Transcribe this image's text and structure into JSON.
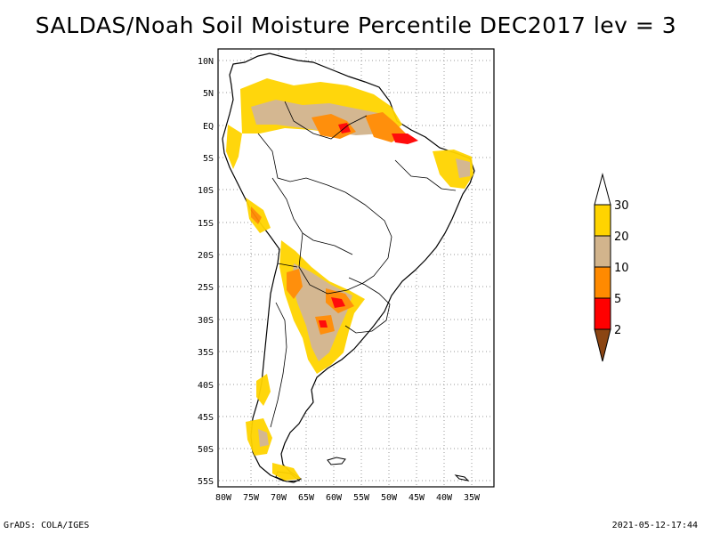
{
  "title": "SALDAS/Noah Soil Moisture Percentile DEC2017 lev = 3",
  "footer": {
    "left": "GrADS: COLA/IGES",
    "right": "2021-05-12-17:44"
  },
  "map": {
    "lon_range": [
      -80,
      -30
    ],
    "lat_range": [
      -56,
      11
    ],
    "x_ticks": [
      "80W",
      "75W",
      "70W",
      "65W",
      "60W",
      "55W",
      "50W",
      "45W",
      "40W",
      "35W"
    ],
    "y_ticks": [
      "10N",
      "5N",
      "EQ",
      "5S",
      "10S",
      "15S",
      "20S",
      "25S",
      "30S",
      "35S",
      "40S",
      "45S",
      "50S",
      "55S"
    ],
    "grid": "dotted"
  },
  "legend": {
    "labels": [
      "30",
      "20",
      "10",
      "5",
      "2"
    ],
    "colors": {
      "above_30": "#ffffff",
      "20_30": "#ffd400",
      "10_20": "#d2b48c",
      "5_10": "#ff8a00",
      "2_5": "#ff0000",
      "below_2": "#8b4513"
    }
  }
}
